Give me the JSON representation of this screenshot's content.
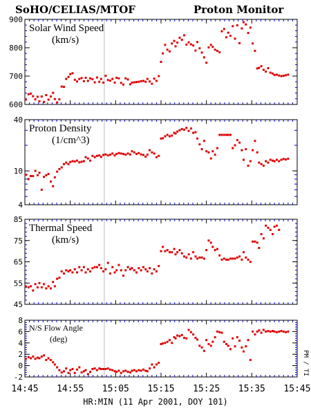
{
  "header": {
    "left_title": "SoHO/CELIAS/MTOF",
    "right_title": "Proton Monitor"
  },
  "xaxis": {
    "label": "HR:MIN (11 Apr 2001, DOY 101)",
    "ticks": [
      "14:45",
      "14:55",
      "15:05",
      "15:15",
      "15:25",
      "15:35",
      "15:45"
    ]
  },
  "side_label": "PM / TI",
  "colors": {
    "points": "#dd0000",
    "axes": "#000000",
    "minor_ticks": "#0000cc",
    "marker_line": "#bbbbbb"
  },
  "chart_data": [
    {
      "type": "scatter",
      "title": "Solar Wind Speed",
      "units": "(km/s)",
      "ylim": [
        600,
        900
      ],
      "yticks": [
        600,
        700,
        800,
        900
      ],
      "log": false,
      "x_minutes_after_1445": [
        0.2,
        0.8,
        1.3,
        1.8,
        2.3,
        2.8,
        3.2,
        3.7,
        4.2,
        4.7,
        5.2,
        5.7,
        6.2,
        6.6,
        7.1,
        7.6,
        8.1,
        8.6,
        9.1,
        9.6,
        10.0,
        10.5,
        11.0,
        11.5,
        12.0,
        12.5,
        13.0,
        13.4,
        13.9,
        14.4,
        14.9,
        15.4,
        15.9,
        16.4,
        16.8,
        17.3,
        17.8,
        18.3,
        18.8,
        19.3,
        19.8,
        20.2,
        20.7,
        21.2,
        21.7,
        22.2,
        22.7,
        23.2,
        23.6,
        24.1,
        24.6,
        25.1,
        25.6,
        26.1,
        26.6,
        27.0,
        27.5,
        28.0,
        28.5,
        29.0,
        29.5,
        30.0,
        30.4,
        30.9,
        31.4,
        31.9,
        32.4,
        32.9,
        33.2,
        33.6,
        34.1,
        34.6,
        35.1,
        35.6,
        36.1,
        36.6,
        37.1,
        37.6,
        38.0,
        38.5,
        39.0,
        39.5,
        40.0,
        40.5,
        41.0,
        41.4,
        41.9,
        42.4,
        42.9,
        43.4,
        43.9,
        44.4,
        44.8,
        45.3,
        45.8,
        46.3,
        46.8,
        47.3,
        47.8,
        48.2,
        48.7,
        49.2,
        49.7,
        50.2,
        50.7,
        51.2,
        51.6,
        52.1,
        52.6,
        53.1,
        53.6,
        54.1,
        54.6,
        55.0,
        55.5,
        56.0,
        56.5,
        57.0,
        57.5,
        58.0,
        58.4,
        58.9,
        59.4,
        59.9
      ],
      "values": [
        617,
        636,
        638,
        629,
        618,
        627,
        611,
        628,
        609,
        633,
        617,
        628,
        641,
        619,
        607,
        618,
        663,
        662,
        690,
        697,
        707,
        710,
        687,
        681,
        690,
        693,
        682,
        694,
        683,
        692,
        689,
        678,
        695,
        680,
        690,
        677,
        701,
        686,
        684,
        690,
        677,
        694,
        692,
        676,
        670,
        692,
        688,
        671,
        677,
        678,
        679,
        680,
        682,
        683,
        680,
        690,
        681,
        673,
        691,
        683,
        700,
        750,
        780,
        810,
        793,
        787,
        815,
        824,
        805,
        818,
        835,
        828,
        844,
        811,
        819,
        812,
        808,
        790,
        820,
        798,
        783,
        766,
        747,
        801,
        810,
        803,
        793,
        789,
        784,
        858,
        866,
        837,
        853,
        842,
        876,
        832,
        879,
        816,
        868,
        890,
        882,
        852,
        871,
        815,
        789,
        727,
        729,
        735,
        722,
        716,
        728,
        712,
        709,
        704,
        705,
        702,
        700,
        701,
        703,
        705
      ]
    },
    {
      "type": "scatter",
      "title": "Proton Density",
      "units": "(1/cm^3)",
      "ylim": [
        4,
        40
      ],
      "yticks": [
        4,
        10,
        40
      ],
      "log": true,
      "x_minutes_after_1445": [
        0.2,
        0.8,
        1.3,
        1.8,
        2.3,
        2.8,
        3.2,
        3.7,
        4.2,
        4.7,
        5.2,
        5.7,
        6.2,
        6.6,
        7.1,
        7.6,
        8.1,
        8.6,
        9.1,
        9.6,
        10.0,
        10.5,
        11.0,
        11.5,
        12.0,
        12.5,
        13.0,
        13.4,
        13.9,
        14.4,
        14.9,
        15.4,
        15.9,
        16.4,
        16.8,
        17.3,
        17.8,
        18.3,
        18.8,
        19.3,
        19.8,
        20.2,
        20.7,
        21.2,
        21.7,
        22.2,
        22.7,
        23.2,
        23.6,
        24.1,
        24.6,
        25.1,
        25.6,
        26.1,
        26.6,
        27.0,
        27.5,
        28.0,
        28.5,
        29.0,
        29.5,
        30.0,
        30.4,
        30.9,
        31.4,
        31.9,
        32.4,
        32.9,
        33.2,
        33.6,
        34.1,
        34.6,
        35.1,
        35.6,
        36.1,
        36.6,
        37.1,
        37.6,
        38.0,
        38.5,
        39.0,
        39.5,
        40.0,
        40.5,
        41.0,
        41.4,
        41.9,
        42.4,
        42.9,
        43.4,
        43.9,
        44.4,
        44.8,
        45.3,
        45.8,
        46.3,
        46.8,
        47.3,
        47.8,
        48.2,
        48.7,
        49.2,
        49.7,
        50.2,
        50.7,
        51.2,
        51.6,
        52.1,
        52.6,
        53.1,
        53.6,
        54.1,
        54.6,
        55.0,
        55.5,
        56.0,
        56.5,
        57.0,
        57.5,
        58.0,
        58.4,
        58.9,
        59.4,
        59.9
      ],
      "values": [
        9.0,
        8.0,
        8.7,
        8.7,
        10.0,
        8.9,
        9.5,
        6.0,
        8.5,
        8.9,
        9.2,
        7.5,
        6.6,
        8.4,
        9.8,
        10.5,
        11.0,
        12.0,
        12.5,
        12.0,
        12.7,
        13.0,
        12.9,
        13.2,
        12.6,
        12.8,
        13.0,
        14.5,
        14.0,
        13.2,
        15.0,
        14.5,
        15.0,
        15.2,
        14.6,
        15.4,
        15.6,
        15.2,
        15.5,
        16.0,
        15.2,
        15.8,
        16.2,
        16.0,
        15.8,
        15.5,
        16.0,
        15.6,
        17.0,
        16.5,
        15.8,
        16.2,
        15.6,
        15.4,
        14.7,
        15.5,
        17.5,
        16.5,
        16.0,
        14.5,
        15.0,
        24.0,
        24.2,
        25.5,
        26.5,
        25.5,
        26.0,
        28.0,
        27.5,
        29.0,
        30.0,
        31.0,
        30.5,
        32.0,
        29.5,
        31.5,
        28.0,
        28.5,
        24.0,
        20.5,
        18.0,
        22.5,
        17.0,
        16.5,
        14.0,
        17.0,
        15.5,
        18.5,
        26.5,
        26.5,
        26.5,
        26.5,
        26.5,
        26.5,
        18.5,
        20.0,
        23.0,
        21.5,
        17.5,
        13.5,
        18.0,
        11.5,
        13.0,
        17.5,
        22.5,
        16.5,
        12.5,
        12.0,
        11.5,
        13.0,
        12.5,
        13.5,
        13.2,
        13.0,
        13.5,
        13.0,
        13.5,
        13.8,
        13.6,
        13.9
      ]
    },
    {
      "type": "scatter",
      "title": "Thermal Speed",
      "units": "(km/s)",
      "ylim": [
        45,
        85
      ],
      "yticks": [
        45,
        55,
        65,
        75,
        85
      ],
      "log": false,
      "x_minutes_after_1445": [
        0.2,
        0.8,
        1.3,
        1.8,
        2.3,
        2.8,
        3.2,
        3.7,
        4.2,
        4.7,
        5.2,
        5.7,
        6.2,
        6.6,
        7.1,
        7.6,
        8.1,
        8.6,
        9.1,
        9.6,
        10.0,
        10.5,
        11.0,
        11.5,
        12.0,
        12.5,
        13.0,
        13.4,
        13.9,
        14.4,
        14.9,
        15.4,
        15.9,
        16.4,
        16.8,
        17.3,
        17.8,
        18.3,
        18.8,
        19.3,
        19.8,
        20.2,
        20.7,
        21.2,
        21.7,
        22.2,
        22.7,
        23.2,
        23.6,
        24.1,
        24.6,
        25.1,
        25.6,
        26.1,
        26.6,
        27.0,
        27.5,
        28.0,
        28.5,
        29.0,
        29.5,
        30.0,
        30.4,
        30.9,
        31.4,
        31.9,
        32.4,
        32.9,
        33.2,
        33.6,
        34.1,
        34.6,
        35.1,
        35.6,
        36.1,
        36.6,
        37.1,
        37.6,
        38.0,
        38.5,
        39.0,
        39.5,
        40.0,
        40.5,
        41.0,
        41.4,
        41.9,
        42.4,
        42.9,
        43.4,
        43.9,
        44.4,
        44.8,
        45.3,
        45.8,
        46.3,
        46.8,
        47.3,
        47.8,
        48.2,
        48.7,
        49.2,
        49.7,
        50.2,
        50.7,
        51.2,
        51.6,
        52.1,
        52.6,
        53.1,
        53.6,
        54.1,
        54.6,
        55.0,
        55.5,
        56.0,
        56.5,
        57.0,
        57.5,
        58.0,
        58.4,
        58.9,
        59.4,
        59.9
      ],
      "values": [
        53.5,
        53.0,
        53.5,
        51.5,
        54.5,
        53.0,
        55.0,
        53.0,
        54.5,
        52.5,
        53.5,
        52.5,
        55.5,
        53.5,
        57.0,
        57.5,
        60.5,
        59.5,
        61.0,
        60.5,
        61.0,
        60.0,
        61.5,
        60.0,
        62.5,
        61.0,
        62.5,
        60.0,
        61.5,
        60.5,
        62.0,
        62.5,
        62.5,
        63.5,
        62.0,
        60.5,
        61.5,
        64.5,
        59.5,
        62.5,
        60.0,
        61.0,
        63.5,
        61.0,
        58.5,
        61.0,
        62.5,
        61.5,
        62.0,
        61.0,
        60.0,
        62.0,
        61.0,
        62.5,
        61.5,
        60.5,
        62.0,
        59.5,
        61.5,
        60.5,
        63.0,
        70.0,
        72.0,
        70.0,
        70.5,
        69.5,
        69.5,
        71.0,
        68.5,
        69.5,
        70.5,
        69.0,
        67.5,
        67.0,
        68.5,
        66.5,
        69.5,
        67.5,
        66.5,
        67.0,
        67.0,
        66.5,
        70.5,
        75.0,
        74.0,
        72.0,
        70.5,
        71.0,
        68.0,
        66.0,
        66.5,
        66.0,
        66.0,
        66.5,
        66.5,
        66.5,
        67.0,
        67.5,
        66.0,
        69.5,
        67.0,
        66.0,
        65.0,
        74.5,
        74.5,
        74.0,
        71.5,
        78.0,
        76.0,
        82.0,
        81.0,
        80.0,
        78.0,
        81.5,
        82.0,
        80.0
      ]
    },
    {
      "type": "scatter",
      "title": "N/S Flow Angle",
      "units": "(deg)",
      "ylim": [
        -2,
        8
      ],
      "yticks": [
        -2,
        0,
        2,
        4,
        6,
        8
      ],
      "log": false,
      "x_minutes_after_1445": [
        0.2,
        0.8,
        1.3,
        1.8,
        2.3,
        2.8,
        3.2,
        3.7,
        4.2,
        4.7,
        5.2,
        5.7,
        6.2,
        6.6,
        7.1,
        7.6,
        8.1,
        8.6,
        9.1,
        9.6,
        10.0,
        10.5,
        11.0,
        11.5,
        12.0,
        12.5,
        13.0,
        13.4,
        13.9,
        14.4,
        14.9,
        15.4,
        15.9,
        16.4,
        16.8,
        17.3,
        17.8,
        18.3,
        18.8,
        19.3,
        19.8,
        20.2,
        20.7,
        21.2,
        21.7,
        22.2,
        22.7,
        23.2,
        23.6,
        24.1,
        24.6,
        25.1,
        25.6,
        26.1,
        26.6,
        27.0,
        27.5,
        28.0,
        28.5,
        29.0,
        29.5,
        30.0,
        30.4,
        30.9,
        31.4,
        31.9,
        32.4,
        32.9,
        33.2,
        33.6,
        34.1,
        34.6,
        35.1,
        35.6,
        36.1,
        36.6,
        37.1,
        37.6,
        38.0,
        38.5,
        39.0,
        39.5,
        40.0,
        40.5,
        41.0,
        41.4,
        41.9,
        42.4,
        42.9,
        43.4,
        43.9,
        44.4,
        44.8,
        45.3,
        45.8,
        46.3,
        46.8,
        47.3,
        47.8,
        48.2,
        48.7,
        49.2,
        49.7,
        50.2,
        50.7,
        51.2,
        51.6,
        52.1,
        52.6,
        53.1,
        53.6,
        54.1,
        54.6,
        55.0,
        55.5,
        56.0,
        56.5,
        57.0,
        57.5,
        58.0,
        58.4,
        58.9,
        59.4,
        59.9
      ],
      "values": [
        1.2,
        1.5,
        1.3,
        1.6,
        1.2,
        1.4,
        1.3,
        1.6,
        1.8,
        1.0,
        1.3,
        1.0,
        0.6,
        0.2,
        -0.3,
        -0.8,
        -1.2,
        -1.0,
        -0.5,
        -1.3,
        -0.8,
        -0.6,
        -1.3,
        -0.7,
        -0.3,
        -1.2,
        -1.0,
        -0.8,
        -1.5,
        -1.1,
        -0.6,
        -0.5,
        -0.8,
        -0.5,
        -0.6,
        -0.6,
        -0.6,
        -0.5,
        -0.7,
        -0.8,
        -1.0,
        -1.1,
        -0.9,
        -1.3,
        -1.0,
        -0.9,
        -1.1,
        -1.2,
        -0.9,
        -0.8,
        -1.0,
        -0.8,
        -0.9,
        -0.7,
        -0.9,
        -1.0,
        -0.5,
        0.2,
        -0.3,
        0.2,
        0.5,
        3.8,
        3.9,
        4.0,
        4.2,
        4.5,
        4.0,
        5.0,
        4.8,
        5.3,
        5.2,
        5.4,
        4.9,
        4.8,
        6.3,
        5.9,
        5.5,
        4.9,
        4.6,
        3.5,
        3.2,
        2.6,
        4.5,
        3.8,
        3.5,
        4.2,
        5.0,
        6.0,
        5.9,
        5.8,
        4.2,
        3.8,
        3.5,
        2.9,
        4.8,
        3.4,
        5.0,
        4.4,
        3.2,
        2.5,
        3.4,
        4.5,
        1.0,
        6.0,
        5.5,
        6.0,
        6.2,
        5.8,
        6.3,
        6.0,
        6.1,
        6.0,
        6.1,
        6.0,
        5.9,
        6.0,
        6.1,
        6.0,
        5.9,
        6.0
      ]
    }
  ]
}
